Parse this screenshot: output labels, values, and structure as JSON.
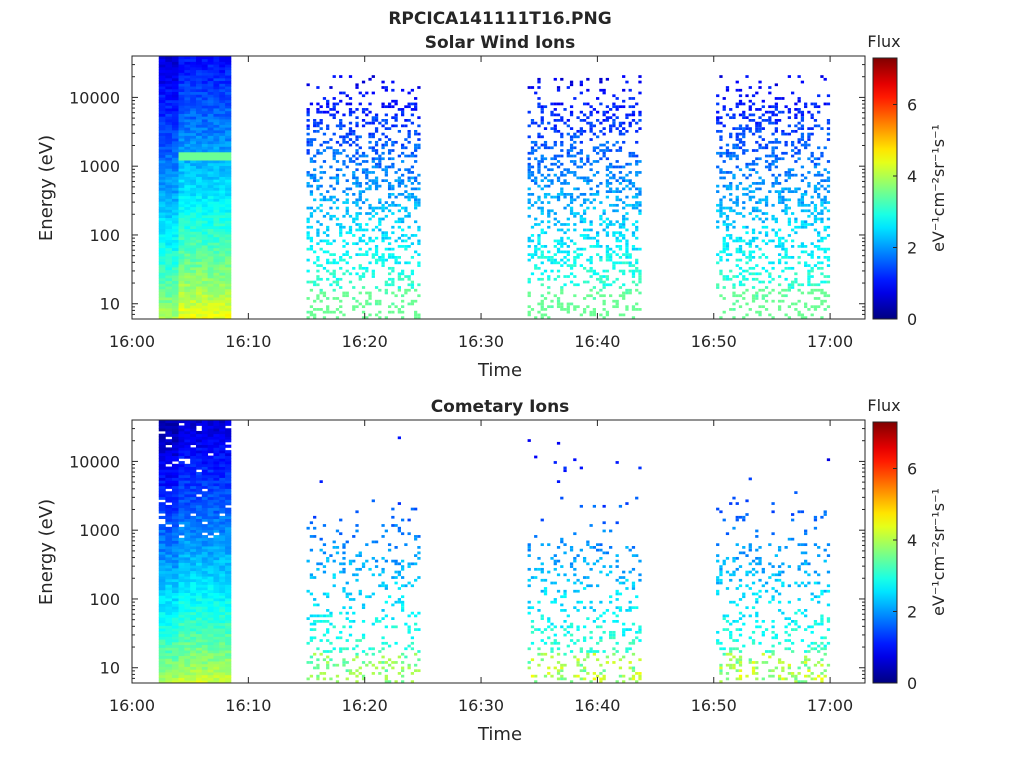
{
  "figure": {
    "title": "RPCICA141111T16.PNG"
  },
  "chart_data": [
    {
      "type": "heatmap",
      "title": "Solar Wind Ions",
      "xlabel": "Time",
      "ylabel": "Energy (eV)",
      "x_ticks": [
        "16:00",
        "16:10",
        "16:20",
        "16:30",
        "16:40",
        "16:50",
        "17:00"
      ],
      "y_ticks": [
        "10",
        "100",
        "1000",
        "10000"
      ],
      "y_scale": "log",
      "ylim": [
        6,
        40000
      ],
      "xlim_minutes": [
        0,
        63
      ],
      "colorbar": {
        "label": "Flux",
        "unit": "eV⁻¹cm⁻²sr⁻¹s⁻¹",
        "range": [
          0,
          7.3
        ],
        "ticks": [
          "0",
          "2",
          "4",
          "6"
        ]
      },
      "dense_blocks": [
        {
          "t_start": 2.3,
          "t_end": 4.0,
          "flux_low_energy": 4.0,
          "flux_high_energy": 0.6
        },
        {
          "t_start": 4.0,
          "t_end": 8.5,
          "flux_low_energy": 4.5,
          "flux_high_energy": 1.0,
          "band_energy_eV": 1300,
          "band_flux": 3.5
        }
      ],
      "sparse_bursts": [
        {
          "t_start": 15.0,
          "t_end": 24.8,
          "peak_flux": 3.5
        },
        {
          "t_start": 34.0,
          "t_end": 43.7,
          "peak_flux": 3.5
        },
        {
          "t_start": 50.2,
          "t_end": 59.8,
          "peak_flux": 3.5
        }
      ]
    },
    {
      "type": "heatmap",
      "title": "Cometary Ions",
      "xlabel": "Time",
      "ylabel": "Energy (eV)",
      "x_ticks": [
        "16:00",
        "16:10",
        "16:20",
        "16:30",
        "16:40",
        "16:50",
        "17:00"
      ],
      "y_ticks": [
        "10",
        "100",
        "1000",
        "10000"
      ],
      "y_scale": "log",
      "ylim": [
        6,
        40000
      ],
      "xlim_minutes": [
        0,
        63
      ],
      "colorbar": {
        "label": "Flux",
        "unit": "eV⁻¹cm⁻²sr⁻¹s⁻¹",
        "range": [
          0,
          7.3
        ],
        "ticks": [
          "0",
          "2",
          "4",
          "6"
        ]
      },
      "dense_blocks": [
        {
          "t_start": 2.3,
          "t_end": 4.0,
          "flux_low_energy": 4.0,
          "flux_high_energy": 0.3
        },
        {
          "t_start": 4.0,
          "t_end": 8.5,
          "flux_low_energy": 4.2,
          "flux_high_energy": 0.6
        }
      ],
      "sparse_bursts": [
        {
          "t_start": 15.0,
          "t_end": 24.8,
          "peak_flux": 4.0
        },
        {
          "t_start": 34.0,
          "t_end": 43.7,
          "peak_flux": 4.5
        },
        {
          "t_start": 50.2,
          "t_end": 59.8,
          "peak_flux": 5.0
        }
      ]
    }
  ]
}
